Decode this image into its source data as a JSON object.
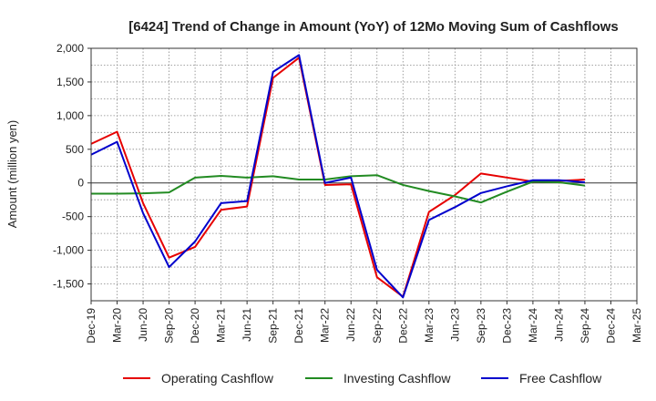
{
  "chart_data": {
    "type": "line",
    "title": "[6424]  Trend of Change in Amount (YoY) of 12Mo Moving Sum of Cashflows",
    "xlabel": "",
    "ylabel": "Amount (million yen)",
    "ylim": [
      -1750,
      2000
    ],
    "yticks": [
      2000,
      1500,
      1000,
      500,
      0,
      -500,
      -1000,
      -1500
    ],
    "ytick_labels": [
      "2,000",
      "1,500",
      "1,000",
      "500",
      "0",
      "-500",
      "-1,000",
      "-1,500"
    ],
    "categories": [
      "Dec-19",
      "Mar-20",
      "Jun-20",
      "Sep-20",
      "Dec-20",
      "Mar-21",
      "Jun-21",
      "Sep-21",
      "Dec-21",
      "Mar-22",
      "Jun-22",
      "Sep-22",
      "Dec-22",
      "Mar-23",
      "Jun-23",
      "Sep-23",
      "Dec-23",
      "Mar-24",
      "Jun-24",
      "Sep-24",
      "Dec-24",
      "Mar-25"
    ],
    "series": [
      {
        "name": "Operating Cashflow",
        "color": "#e60000",
        "values": [
          580,
          760,
          -300,
          -1110,
          -950,
          -400,
          -350,
          1560,
          1860,
          -30,
          -20,
          -1400,
          -1690,
          -430,
          -180,
          140,
          80,
          20,
          30,
          50,
          null,
          null
        ]
      },
      {
        "name": "Investing Cashflow",
        "color": "#228b22",
        "values": [
          -160,
          -160,
          -155,
          -140,
          80,
          105,
          80,
          100,
          50,
          50,
          100,
          115,
          -30,
          -120,
          -200,
          -290,
          -130,
          20,
          10,
          -40,
          null,
          null
        ]
      },
      {
        "name": "Free Cashflow",
        "color": "#0000cc",
        "values": [
          420,
          610,
          -450,
          -1250,
          -870,
          -300,
          -270,
          1650,
          1900,
          0,
          80,
          -1290,
          -1700,
          -550,
          -360,
          -150,
          -50,
          40,
          40,
          10,
          null,
          null
        ]
      }
    ],
    "grid": true,
    "legend_position": "bottom"
  }
}
